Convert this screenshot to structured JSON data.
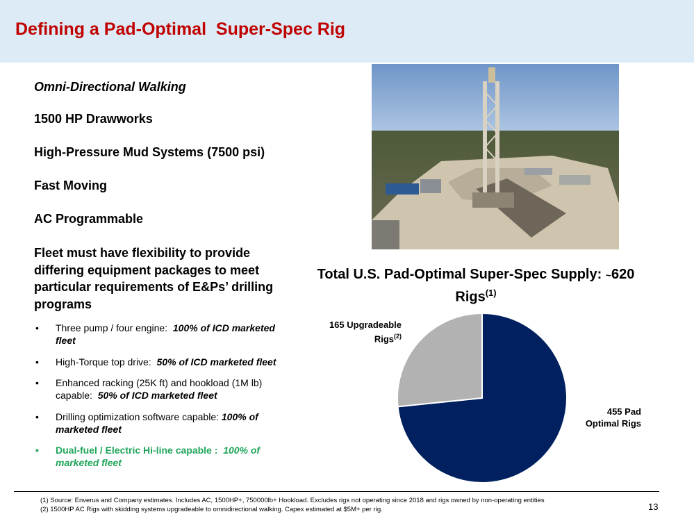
{
  "title": "Defining a Pad-Optimal  Super-Spec Rig",
  "features": [
    "Omni-Directional Walking",
    "1500 HP Drawworks",
    "High-Pressure Mud Systems (7500 psi)",
    "Fast Moving",
    "AC Programmable"
  ],
  "fleet_statement": "Fleet must have flexibility to provide differing equipment packages to meet particular requirements of E&Ps’ drilling programs",
  "bullets": [
    {
      "text": "Three pump / four engine:",
      "emphasis": "100% of ICD marketed fleet"
    },
    {
      "text": "High-Torque top drive:",
      "emphasis": "50% of ICD marketed fleet"
    },
    {
      "text": "Enhanced racking (25K ft) and hookload (1M lb) capable:",
      "emphasis": "50% of ICD marketed fleet"
    },
    {
      "text": "Drilling optimization software capable:",
      "emphasis": "100% of marketed fleet"
    },
    {
      "text": "Dual-fuel / Electric Hi-line capable :",
      "emphasis": "100% of marketed fleet"
    }
  ],
  "chart_heading": {
    "text": "Total U.S. Pad-Optimal Super-Spec Supply:",
    "approx": "~",
    "count": "620",
    "unit": "Rigs",
    "footnote_ref": "(1)"
  },
  "chart_data": {
    "type": "pie",
    "title": "Total U.S. Pad-Optimal Super-Spec Supply: ~620 Rigs(1)",
    "slices": [
      {
        "label_line1": "455 Pad",
        "label_line2": "Optimal Rigs",
        "value": 455,
        "color": "#002060"
      },
      {
        "label_line1": "165 Upgradeable",
        "label_line2": "Rigs",
        "footnote_ref": "(2)",
        "value": 165,
        "color": "#b2b2b2"
      }
    ]
  },
  "footnotes": [
    "(1)  Source:  Enverus and Company estimates. Includes AC, 1500HP+, 750000lb+ Hookload.  Excludes rigs not operating since 2018 and rigs owned by non-operating entities",
    "(2)  1500HP AC Rigs with skidding systems upgradeable to omnidirectional walking.  Capex estimated at $5M+ per rig."
  ],
  "page_number": "13",
  "colors": {
    "title_red": "#c00000",
    "header_bg": "#dcebf5",
    "highlight_green": "#1fa55a"
  }
}
